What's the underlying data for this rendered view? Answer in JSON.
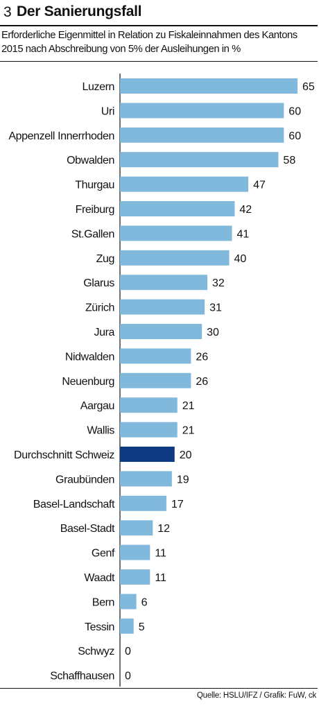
{
  "header": {
    "number": "3",
    "title": "Der Sanierungsfall",
    "subtitle": "Erforderliche Eigenmittel in Relation zu Fiskaleinnahmen des Kantons 2015 nach Abschreibung von 5% der Ausleihungen in %"
  },
  "source": "Quelle: HSLU/IFZ / Grafik: FuW, ck",
  "colors": {
    "bar": "#80b9dc",
    "highlight": "#0d3a80",
    "axis": "#111111"
  },
  "chart_data": {
    "type": "bar",
    "orientation": "horizontal",
    "title": "Der Sanierungsfall",
    "subtitle": "Erforderliche Eigenmittel in Relation zu Fiskaleinnahmen des Kantons 2015 nach Abschreibung von 5% der Ausleihungen in %",
    "categories": [
      "Luzern",
      "Uri",
      "Appenzell Innerrhoden",
      "Obwalden",
      "Thurgau",
      "Freiburg",
      "St.Gallen",
      "Zug",
      "Glarus",
      "Zürich",
      "Jura",
      "Nidwalden",
      "Neuenburg",
      "Aargau",
      "Wallis",
      "Durchschnitt Schweiz",
      "Graubünden",
      "Basel-Landschaft",
      "Basel-Stadt",
      "Genf",
      "Waadt",
      "Bern",
      "Tessin",
      "Schwyz",
      "Schaffhausen"
    ],
    "values": [
      65,
      60,
      60,
      58,
      47,
      42,
      41,
      40,
      32,
      31,
      30,
      26,
      26,
      21,
      21,
      20,
      19,
      17,
      12,
      11,
      11,
      6,
      5,
      0,
      0
    ],
    "highlight": "Durchschnitt Schweiz",
    "xlim": [
      0,
      65
    ],
    "grid": false,
    "legend": "none",
    "data_labels": true
  }
}
